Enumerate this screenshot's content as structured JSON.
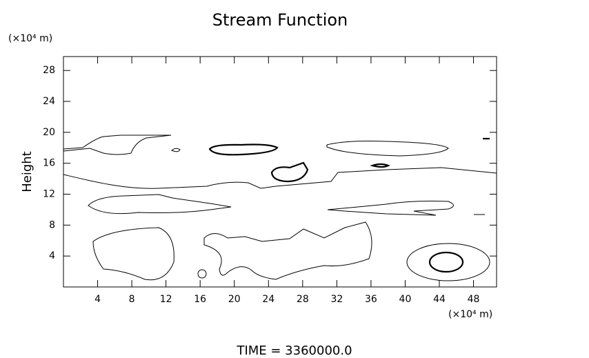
{
  "chart_data": {
    "type": "contour",
    "title": "Stream Function",
    "y_unit": "(×10⁴ m)",
    "x_unit": "(×10⁴ m)",
    "ylabel": "Height",
    "footer": "TIME = 3360000.0",
    "xlim": [
      0,
      50.7
    ],
    "xticks": [
      4,
      8,
      12,
      16,
      20,
      24,
      28,
      32,
      36,
      40,
      44,
      48
    ],
    "ylim": [
      0,
      29.8
    ],
    "yticks": [
      4,
      8,
      12,
      16,
      20,
      24,
      28
    ]
  }
}
